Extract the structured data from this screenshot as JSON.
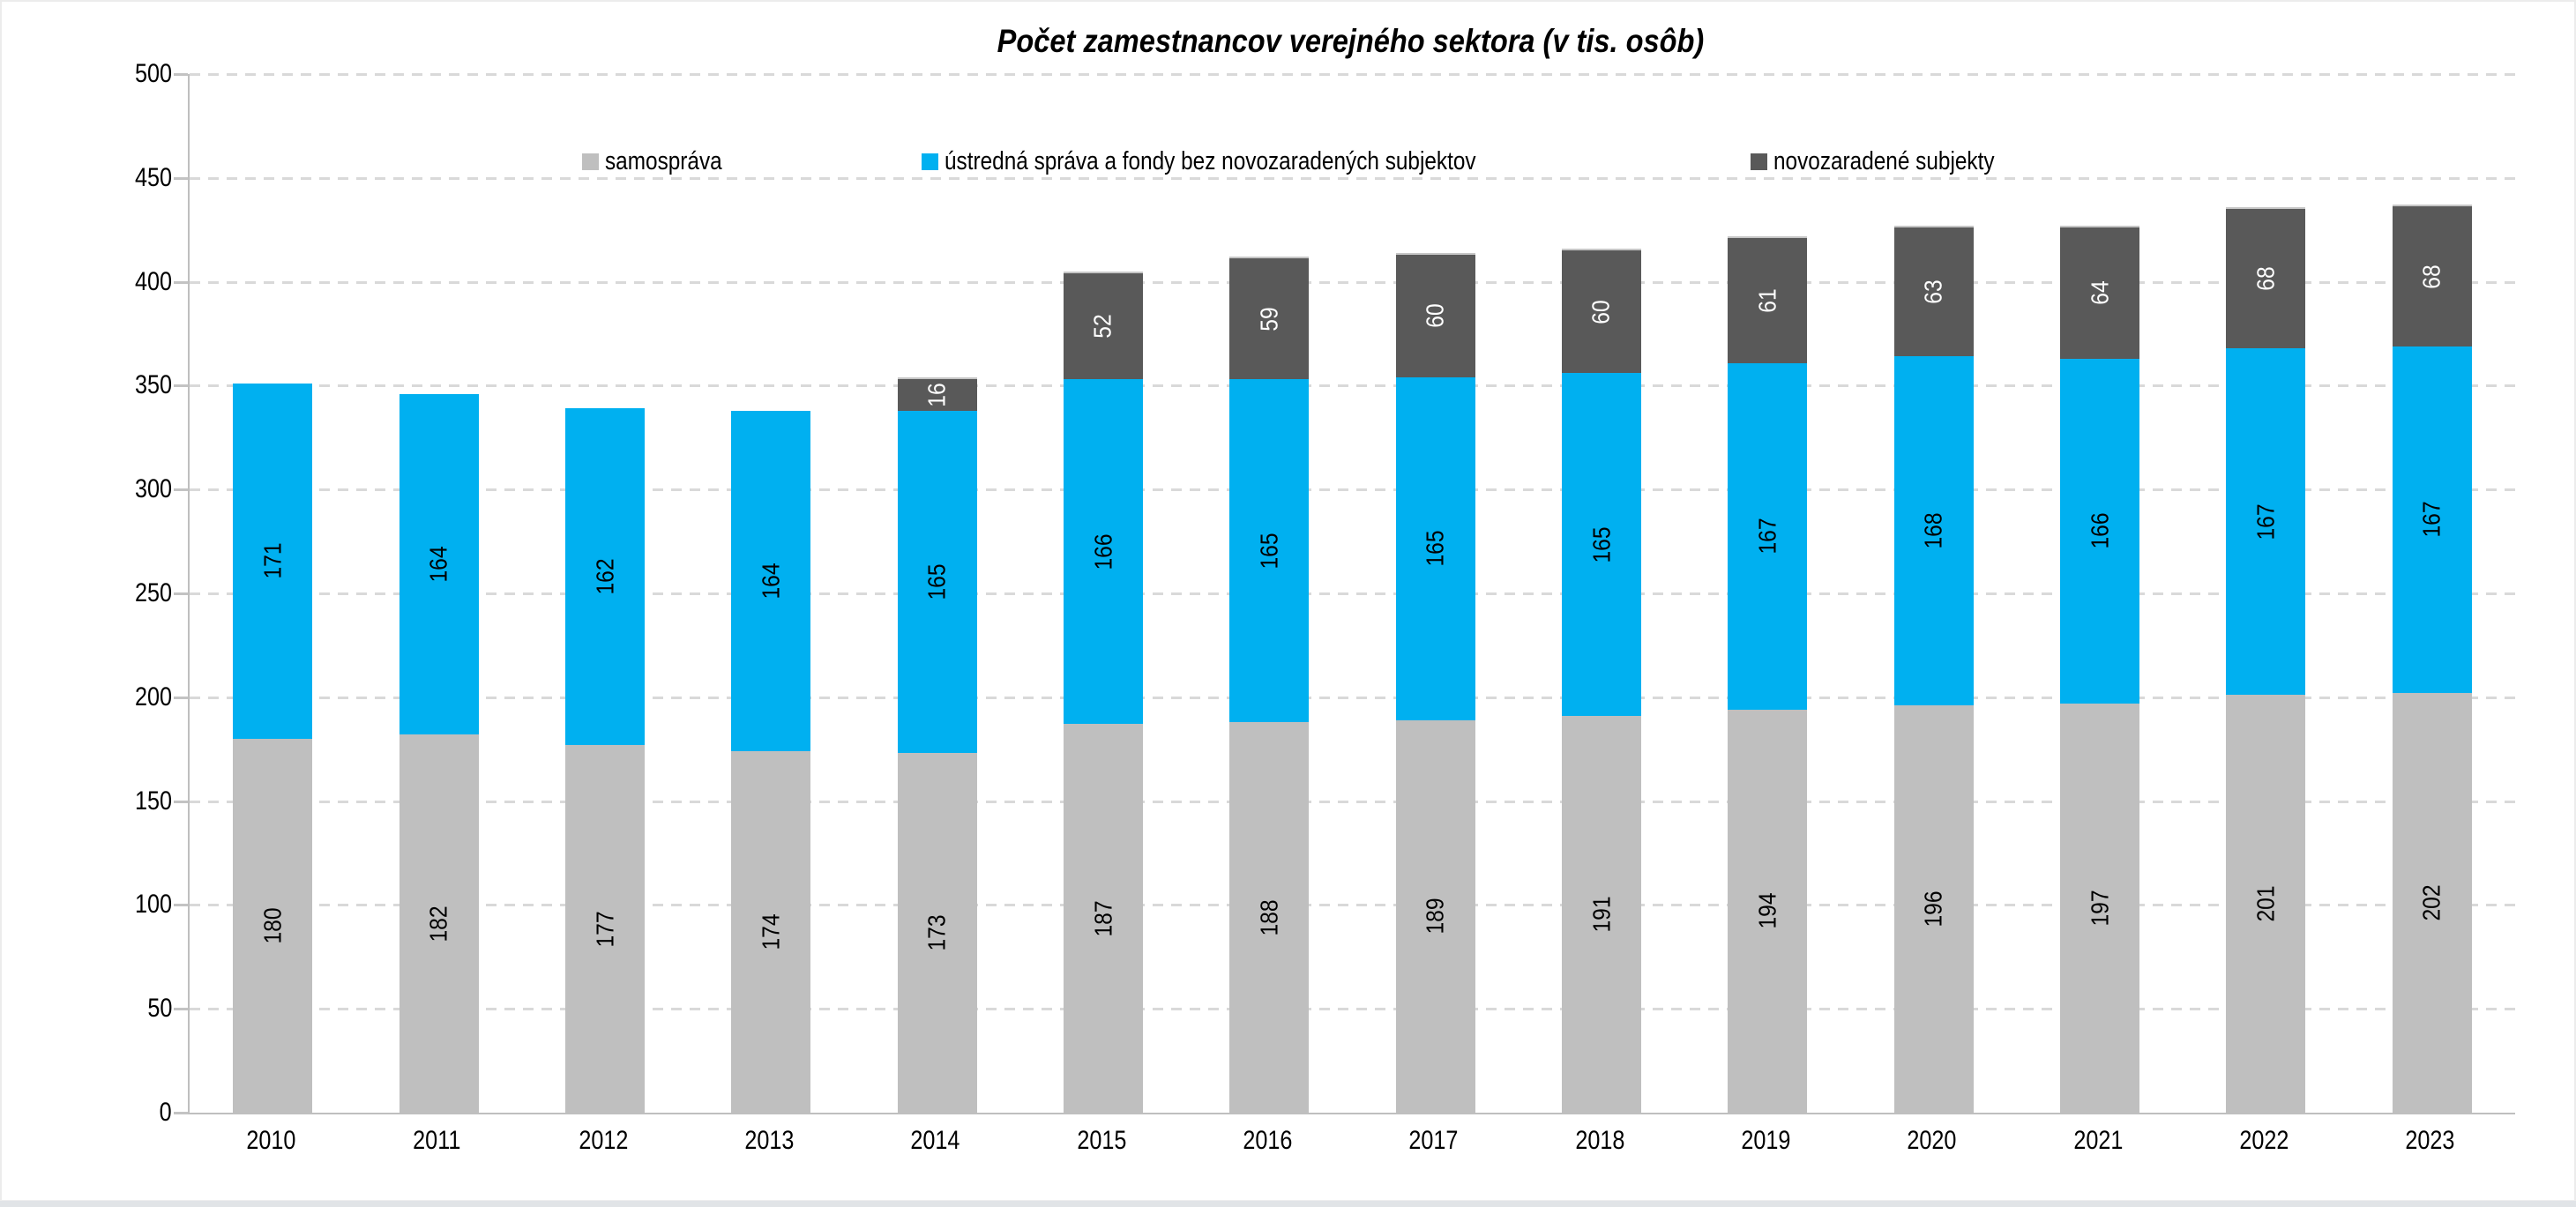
{
  "chart_data": {
    "type": "bar",
    "stacked": true,
    "title": "Počet zamestnancov verejného sektora (v tis. osôb)",
    "categories": [
      "2010",
      "2011",
      "2012",
      "2013",
      "2014",
      "2015",
      "2016",
      "2017",
      "2018",
      "2019",
      "2020",
      "2021",
      "2022",
      "2023"
    ],
    "series": [
      {
        "name": "samospráva",
        "color": "#BFBFBF",
        "label_color": "#000000",
        "values": [
          180,
          182,
          177,
          174,
          173,
          187,
          188,
          189,
          191,
          194,
          196,
          197,
          201,
          202
        ]
      },
      {
        "name": "ústredná správa a fondy bez novozaradených subjektov",
        "color": "#00B0F0",
        "label_color": "#000000",
        "values": [
          171,
          164,
          162,
          164,
          165,
          166,
          165,
          165,
          165,
          167,
          168,
          166,
          167,
          167
        ]
      },
      {
        "name": "novozaradené subjekty",
        "color": "#595959",
        "label_color": "#FFFFFF",
        "values": [
          0,
          0,
          0,
          0,
          16,
          52,
          59,
          60,
          60,
          61,
          63,
          64,
          68,
          68
        ]
      }
    ],
    "ylim": [
      0,
      500
    ],
    "ytick_step": 50,
    "grid": "horizontal-dashed",
    "legend_position": "top",
    "axis_color": "#BFBFBF",
    "gridline_color": "#D9D9D9"
  }
}
